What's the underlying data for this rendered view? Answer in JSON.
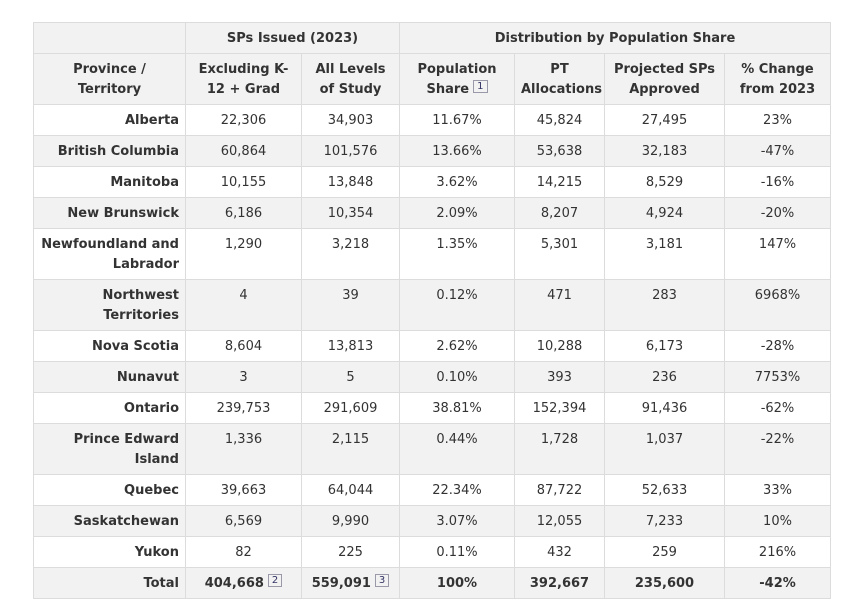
{
  "table": {
    "groups": [
      "SPs Issued (2023)",
      "Distribution by Population Share"
    ],
    "columns": [
      {
        "label": "Province / Territory"
      },
      {
        "label": "Excluding K-12 + Grad"
      },
      {
        "label": "All Levels of Study"
      },
      {
        "label": "Population Share",
        "note": "1"
      },
      {
        "label": "PT Allocations"
      },
      {
        "label": "Projected SPs Approved"
      },
      {
        "label": "% Change from 2023"
      }
    ],
    "rows": [
      [
        "Alberta",
        "22,306",
        "34,903",
        "11.67%",
        "45,824",
        "27,495",
        "23%"
      ],
      [
        "British Columbia",
        "60,864",
        "101,576",
        "13.66%",
        "53,638",
        "32,183",
        "-47%"
      ],
      [
        "Manitoba",
        "10,155",
        "13,848",
        "3.62%",
        "14,215",
        "8,529",
        "-16%"
      ],
      [
        "New Brunswick",
        "6,186",
        "10,354",
        "2.09%",
        "8,207",
        "4,924",
        "-20%"
      ],
      [
        "Newfoundland and Labrador",
        "1,290",
        "3,218",
        "1.35%",
        "5,301",
        "3,181",
        "147%"
      ],
      [
        "Northwest Territories",
        "4",
        "39",
        "0.12%",
        "471",
        "283",
        "6968%"
      ],
      [
        "Nova Scotia",
        "8,604",
        "13,813",
        "2.62%",
        "10,288",
        "6,173",
        "-28%"
      ],
      [
        "Nunavut",
        "3",
        "5",
        "0.10%",
        "393",
        "236",
        "7753%"
      ],
      [
        "Ontario",
        "239,753",
        "291,609",
        "38.81%",
        "152,394",
        "91,436",
        "-62%"
      ],
      [
        "Prince Edward Island",
        "1,336",
        "2,115",
        "0.44%",
        "1,728",
        "1,037",
        "-22%"
      ],
      [
        "Quebec",
        "39,663",
        "64,044",
        "22.34%",
        "87,722",
        "52,633",
        "33%"
      ],
      [
        "Saskatchewan",
        "6,569",
        "9,990",
        "3.07%",
        "12,055",
        "7,233",
        "10%"
      ],
      [
        "Yukon",
        "82",
        "225",
        "0.11%",
        "432",
        "259",
        "216%"
      ]
    ],
    "total": [
      "Total",
      "404,668",
      "559,091",
      "100%",
      "392,667",
      "235,600",
      "-42%"
    ],
    "total_notes": {
      "1": "2",
      "2": "3"
    }
  }
}
